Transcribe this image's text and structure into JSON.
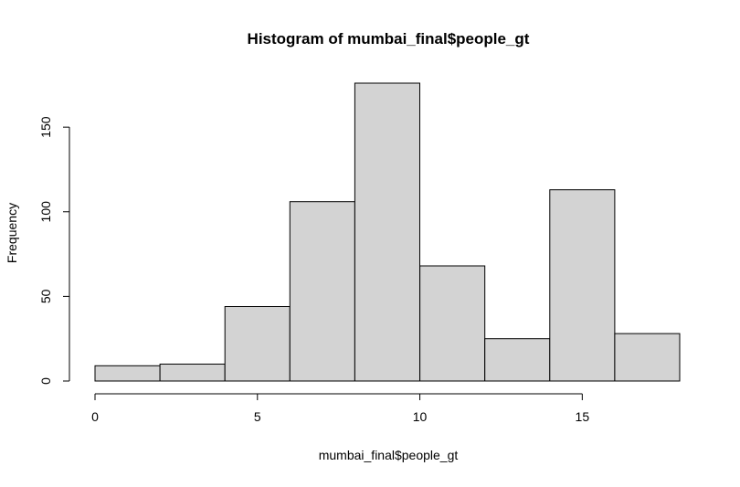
{
  "chart_data": {
    "type": "bar",
    "subtype": "histogram",
    "title": "Histogram of mumbai_final$people_gt",
    "xlabel": "mumbai_final$people_gt",
    "ylabel": "Frequency",
    "bins": [
      {
        "start": 0,
        "end": 2,
        "count": 9
      },
      {
        "start": 2,
        "end": 4,
        "count": 10
      },
      {
        "start": 4,
        "end": 6,
        "count": 44
      },
      {
        "start": 6,
        "end": 8,
        "count": 106
      },
      {
        "start": 8,
        "end": 10,
        "count": 176
      },
      {
        "start": 10,
        "end": 12,
        "count": 68
      },
      {
        "start": 12,
        "end": 14,
        "count": 25
      },
      {
        "start": 14,
        "end": 16,
        "count": 113
      },
      {
        "start": 16,
        "end": 18,
        "count": 28
      }
    ],
    "xlim": [
      0,
      18
    ],
    "ylim": [
      0,
      176
    ],
    "x_ticks": [
      0,
      5,
      10,
      15
    ],
    "y_ticks": [
      0,
      50,
      100,
      150
    ],
    "bar_color": "#d3d3d3",
    "grid": false,
    "legend": "none"
  }
}
